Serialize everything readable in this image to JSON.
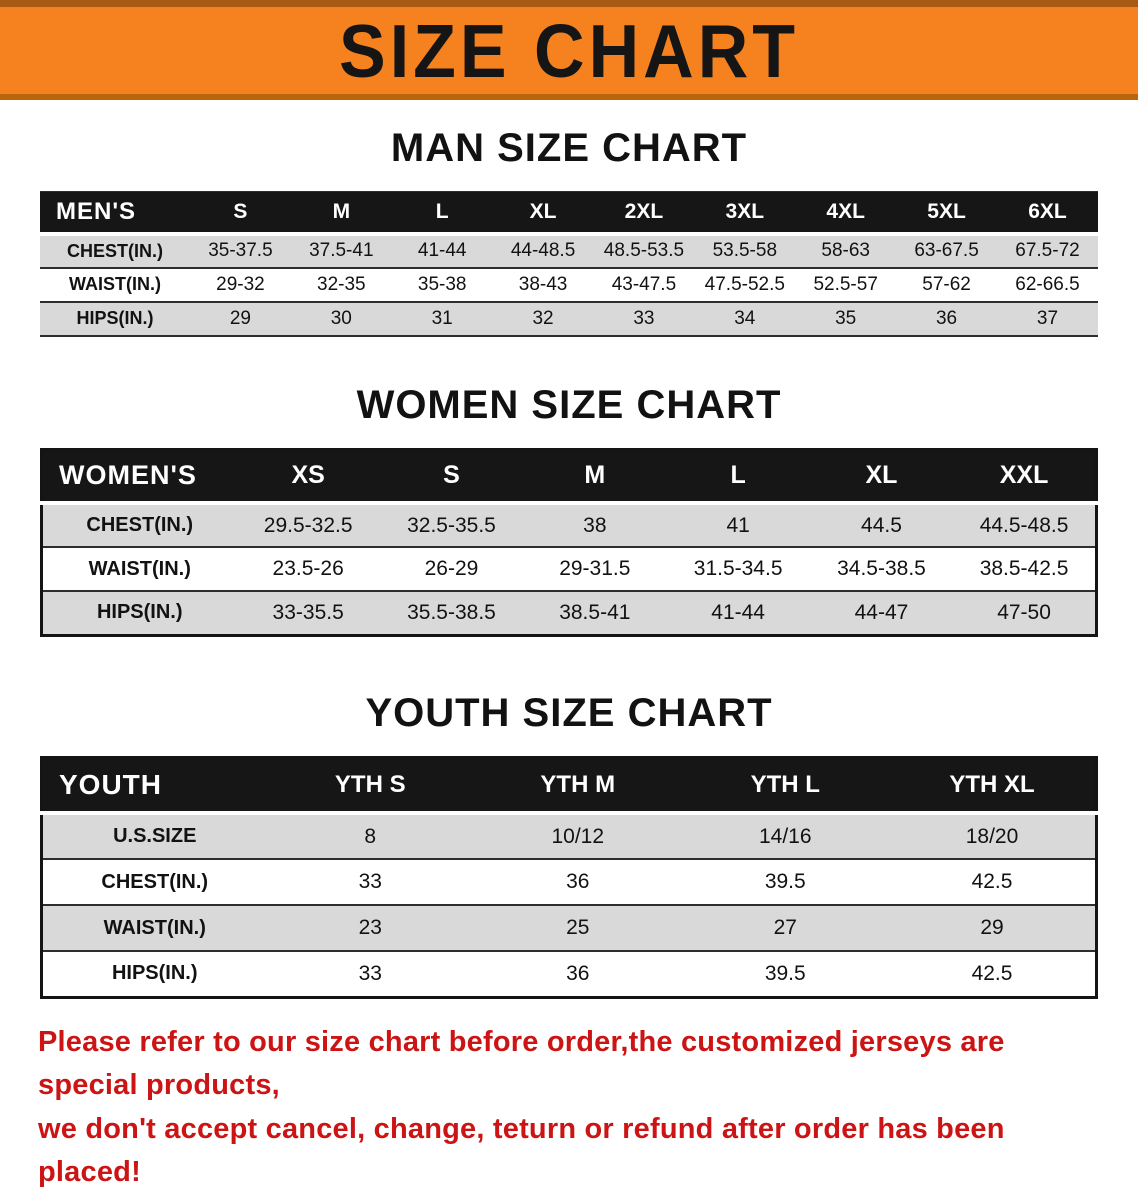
{
  "banner": {
    "title": "SIZE CHART"
  },
  "colors": {
    "banner_orange": "#f5821f",
    "banner_orange_dark": "#a85a12",
    "table_header_black": "#161616",
    "row_shade_gray": "#d9d9d9",
    "disclaimer_red": "#cc1414"
  },
  "men": {
    "heading": "MAN SIZE CHART",
    "header_label": "MEN'S",
    "sizes": [
      "S",
      "M",
      "L",
      "XL",
      "2XL",
      "3XL",
      "4XL",
      "5XL",
      "6XL"
    ],
    "rows": [
      {
        "label": "CHEST(IN.)",
        "values": [
          "35-37.5",
          "37.5-41",
          "41-44",
          "44-48.5",
          "48.5-53.5",
          "53.5-58",
          "58-63",
          "63-67.5",
          "67.5-72"
        ]
      },
      {
        "label": "WAIST(IN.)",
        "values": [
          "29-32",
          "32-35",
          "35-38",
          "38-43",
          "43-47.5",
          "47.5-52.5",
          "52.5-57",
          "57-62",
          "62-66.5"
        ]
      },
      {
        "label": "HIPS(IN.)",
        "values": [
          "29",
          "30",
          "31",
          "32",
          "33",
          "34",
          "35",
          "36",
          "37"
        ]
      }
    ]
  },
  "women": {
    "heading": "WOMEN SIZE CHART",
    "header_label": "WOMEN'S",
    "sizes": [
      "XS",
      "S",
      "M",
      "L",
      "XL",
      "XXL"
    ],
    "rows": [
      {
        "label": "CHEST(IN.)",
        "values": [
          "29.5-32.5",
          "32.5-35.5",
          "38",
          "41",
          "44.5",
          "44.5-48.5"
        ]
      },
      {
        "label": "WAIST(IN.)",
        "values": [
          "23.5-26",
          "26-29",
          "29-31.5",
          "31.5-34.5",
          "34.5-38.5",
          "38.5-42.5"
        ]
      },
      {
        "label": "HIPS(IN.)",
        "values": [
          "33-35.5",
          "35.5-38.5",
          "38.5-41",
          "41-44",
          "44-47",
          "47-50"
        ]
      }
    ]
  },
  "youth": {
    "heading": "YOUTH SIZE CHART",
    "header_label": "YOUTH",
    "sizes": [
      "YTH S",
      "YTH M",
      "YTH L",
      "YTH XL"
    ],
    "rows": [
      {
        "label": "U.S.SIZE",
        "values": [
          "8",
          "10/12",
          "14/16",
          "18/20"
        ]
      },
      {
        "label": "CHEST(IN.)",
        "values": [
          "33",
          "36",
          "39.5",
          "42.5"
        ]
      },
      {
        "label": "WAIST(IN.)",
        "values": [
          "23",
          "25",
          "27",
          "29"
        ]
      },
      {
        "label": "HIPS(IN.)",
        "values": [
          "33",
          "36",
          "39.5",
          "42.5"
        ]
      }
    ]
  },
  "disclaimer": {
    "line1": "Please refer to our size chart before order,the customized jerseys are special products,",
    "line2": "we don't accept cancel, change, teturn or refund after order has been placed!"
  }
}
